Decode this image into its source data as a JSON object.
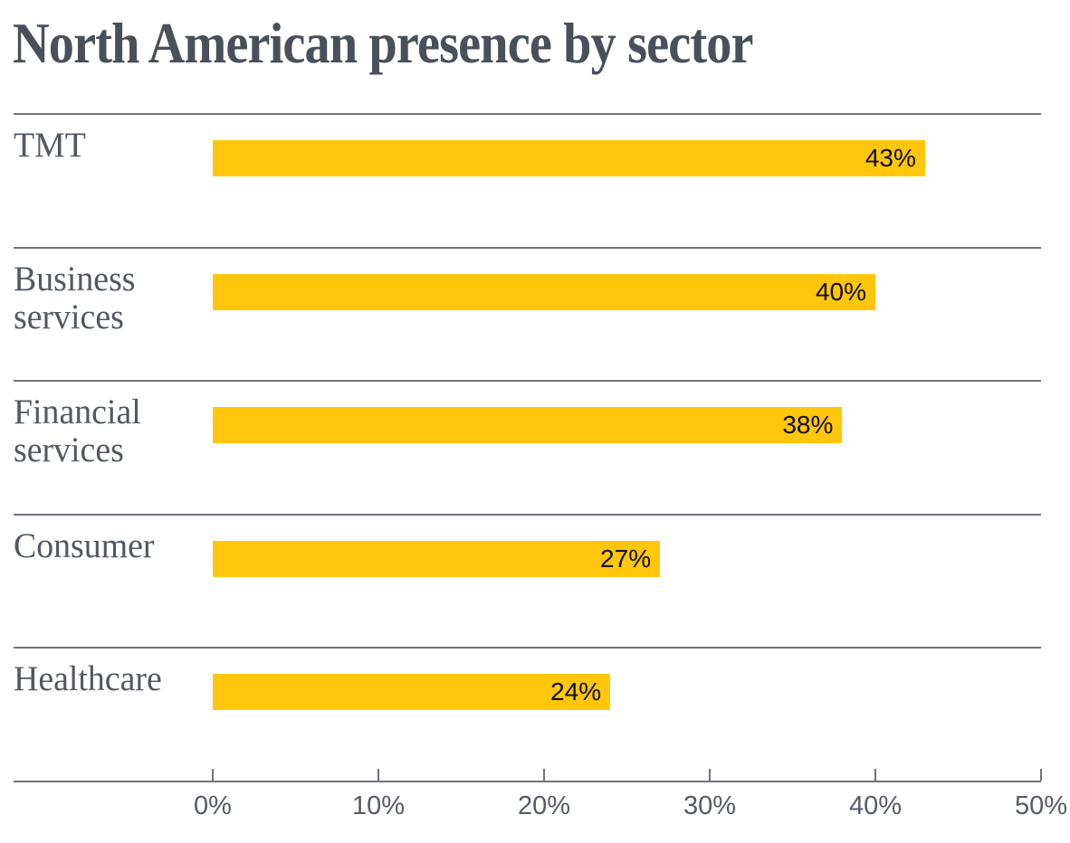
{
  "title": "North American presence by sector",
  "chart_data": {
    "type": "bar",
    "orientation": "horizontal",
    "title": "North American presence by sector",
    "categories": [
      "TMT",
      "Business services",
      "Financial services",
      "Consumer",
      "Healthcare"
    ],
    "values": [
      43,
      40,
      38,
      27,
      24
    ],
    "value_labels": [
      "43%",
      "40%",
      "38%",
      "27%",
      "24%"
    ],
    "x_axis": {
      "tick_labels": [
        "0%",
        "10%",
        "20%",
        "30%",
        "40%",
        "50%"
      ],
      "tick_values": [
        0,
        10,
        20,
        30,
        40,
        50
      ],
      "min": 0,
      "max": 50
    },
    "legend": "none",
    "grid": "row separator lines above each bar",
    "value_label_position": "inside bar, right-aligned",
    "colors": {
      "bar": "#ffc60b",
      "title_text": "#4a5059",
      "category_text": "#515862",
      "value_text": "#0d0d0d",
      "tick_text": "#555b66",
      "separator_line": "#6f737c",
      "background": "#ffffff"
    }
  }
}
